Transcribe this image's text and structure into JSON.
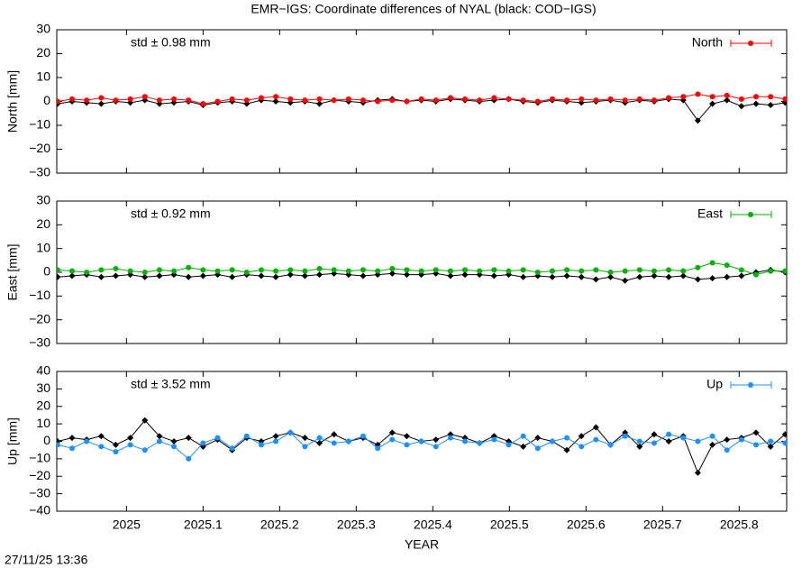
{
  "title": "EMR−IGS: Coordinate differences of NYAL (black: COD−IGS)",
  "footer": "27/11/25 13:36",
  "chart_data": [
    {
      "type": "line",
      "ylabel": "North [mm]",
      "annotation": "std ± 0.98 mm",
      "annotation_color": "#ff0000",
      "xlim": [
        2024.909,
        2025.862
      ],
      "ylim": [
        -30,
        30
      ],
      "yticks": [
        {
          "value": -30,
          "label": "−30"
        },
        {
          "value": -20,
          "label": "−20"
        },
        {
          "value": -10,
          "label": "−10"
        },
        0,
        10,
        20,
        30
      ],
      "x": [
        2024.91,
        2024.929,
        2024.948,
        2024.967,
        2024.986,
        2025.005,
        2025.024,
        2025.043,
        2025.062,
        2025.081,
        2025.1,
        2025.119,
        2025.138,
        2025.157,
        2025.176,
        2025.195,
        2025.214,
        2025.233,
        2025.252,
        2025.271,
        2025.29,
        2025.309,
        2025.328,
        2025.347,
        2025.366,
        2025.385,
        2025.404,
        2025.423,
        2025.442,
        2025.461,
        2025.48,
        2025.499,
        2025.518,
        2025.537,
        2025.556,
        2025.575,
        2025.594,
        2025.613,
        2025.632,
        2025.651,
        2025.67,
        2025.689,
        2025.708,
        2025.727,
        2025.746,
        2025.765,
        2025.784,
        2025.803,
        2025.822,
        2025.841,
        2025.86
      ],
      "series": [
        {
          "color": "#000000",
          "values": [
            -1,
            0,
            -0.5,
            -1,
            0,
            -0.5,
            0.5,
            -1,
            -0.5,
            0,
            -1.5,
            -0.5,
            0,
            -1,
            0.5,
            0,
            -0.5,
            0,
            -1,
            0.5,
            0,
            -0.5,
            0.5,
            1,
            0,
            0.5,
            0,
            1,
            0.5,
            0,
            0.5,
            1,
            0,
            -0.5,
            0.5,
            0,
            -0.5,
            0,
            0.5,
            -0.5,
            0.5,
            0,
            1,
            0.5,
            -8,
            -1,
            0.5,
            -2,
            -1,
            -1.5,
            -0.5
          ]
        },
        {
          "name": "North",
          "color": "#ff0000",
          "values": [
            0,
            1,
            0.5,
            1.5,
            0.5,
            1,
            2,
            0.5,
            1,
            0.5,
            -1,
            0,
            1,
            0.5,
            1.5,
            2,
            1,
            0.5,
            1,
            0.5,
            1,
            0.5,
            0,
            0.5,
            0,
            1,
            0.5,
            1.5,
            1,
            0.5,
            1.5,
            1,
            0.5,
            0,
            1,
            0.5,
            1,
            0.5,
            1,
            0.5,
            1,
            0.5,
            1.5,
            2,
            3,
            2,
            2.5,
            1,
            2,
            2,
            1
          ]
        }
      ]
    },
    {
      "type": "line",
      "ylabel": "East [mm]",
      "annotation": "std ± 0.92 mm",
      "annotation_color": "#00b000",
      "xlim": [
        2024.909,
        2025.862
      ],
      "ylim": [
        -30,
        30
      ],
      "yticks": [
        {
          "value": -30,
          "label": "−30"
        },
        {
          "value": -20,
          "label": "−20"
        },
        {
          "value": -10,
          "label": "−10"
        },
        0,
        10,
        20,
        30
      ],
      "x": [
        2024.91,
        2024.929,
        2024.948,
        2024.967,
        2024.986,
        2025.005,
        2025.024,
        2025.043,
        2025.062,
        2025.081,
        2025.1,
        2025.119,
        2025.138,
        2025.157,
        2025.176,
        2025.195,
        2025.214,
        2025.233,
        2025.252,
        2025.271,
        2025.29,
        2025.309,
        2025.328,
        2025.347,
        2025.366,
        2025.385,
        2025.404,
        2025.423,
        2025.442,
        2025.461,
        2025.48,
        2025.499,
        2025.518,
        2025.537,
        2025.556,
        2025.575,
        2025.594,
        2025.613,
        2025.632,
        2025.651,
        2025.67,
        2025.689,
        2025.708,
        2025.727,
        2025.746,
        2025.765,
        2025.784,
        2025.803,
        2025.822,
        2025.841,
        2025.86
      ],
      "series": [
        {
          "color": "#000000",
          "values": [
            -2,
            -1.5,
            -1,
            -2,
            -1.5,
            -1,
            -2,
            -1.5,
            -1,
            -2,
            -1.5,
            -1,
            -2,
            -1,
            -1.5,
            -2,
            -1,
            -1.5,
            -1,
            -0.5,
            -1,
            -1.5,
            -1,
            -0.5,
            -1,
            -1,
            -0.5,
            -1.5,
            -1,
            -1,
            -1.5,
            -1,
            -2,
            -1.5,
            -2,
            -1.5,
            -2,
            -3,
            -2,
            -3.5,
            -2,
            -1.5,
            -2,
            -1.5,
            -3,
            -2.5,
            -2,
            -1.5,
            0,
            1,
            0
          ]
        },
        {
          "name": "East",
          "color": "#00b000",
          "values": [
            1,
            0.5,
            0,
            1,
            1.5,
            0.5,
            0,
            1,
            0.5,
            2,
            1,
            0.5,
            1,
            0,
            1,
            0.5,
            1,
            0.5,
            1.5,
            1,
            0.5,
            1,
            0.5,
            1.5,
            1,
            0.5,
            1,
            0.5,
            1,
            0.5,
            1,
            0.5,
            1,
            0,
            0.5,
            1,
            0.5,
            1,
            0,
            0.5,
            1,
            0.5,
            1,
            0.5,
            2,
            4,
            3,
            1,
            -1,
            0.5,
            0.5
          ]
        }
      ]
    },
    {
      "type": "line",
      "ylabel": "Up [mm]",
      "xlabel": "YEAR",
      "annotation": "std ± 3.52 mm",
      "annotation_color": "#1e90ff",
      "xlim": [
        2024.909,
        2025.862
      ],
      "ylim": [
        -40,
        40
      ],
      "yticks": [
        {
          "value": -40,
          "label": "−40"
        },
        {
          "value": -30,
          "label": "−30"
        },
        {
          "value": -20,
          "label": "−20"
        },
        {
          "value": -10,
          "label": "−10"
        },
        0,
        10,
        20,
        30,
        40
      ],
      "xticks": [
        2025,
        2025.1,
        2025.2,
        2025.3,
        2025.4,
        2025.5,
        2025.6,
        2025.7,
        2025.8
      ],
      "x": [
        2024.91,
        2024.929,
        2024.948,
        2024.967,
        2024.986,
        2025.005,
        2025.024,
        2025.043,
        2025.062,
        2025.081,
        2025.1,
        2025.119,
        2025.138,
        2025.157,
        2025.176,
        2025.195,
        2025.214,
        2025.233,
        2025.252,
        2025.271,
        2025.29,
        2025.309,
        2025.328,
        2025.347,
        2025.366,
        2025.385,
        2025.404,
        2025.423,
        2025.442,
        2025.461,
        2025.48,
        2025.499,
        2025.518,
        2025.537,
        2025.556,
        2025.575,
        2025.594,
        2025.613,
        2025.632,
        2025.651,
        2025.67,
        2025.689,
        2025.708,
        2025.727,
        2025.746,
        2025.765,
        2025.784,
        2025.803,
        2025.822,
        2025.841,
        2025.86
      ],
      "series": [
        {
          "color": "#000000",
          "values": [
            0,
            2,
            1,
            3,
            -2,
            2,
            12,
            3,
            0,
            2,
            -3,
            1,
            -5,
            2,
            0,
            3,
            5,
            2,
            -1,
            4,
            0,
            2,
            -2,
            5,
            3,
            0,
            1,
            4,
            2,
            -1,
            3,
            0,
            -3,
            2,
            0,
            -5,
            3,
            8,
            -2,
            5,
            -3,
            4,
            0,
            3,
            -18,
            -2,
            1,
            2,
            5,
            -3,
            4
          ]
        },
        {
          "name": "Up",
          "color": "#1e90ff",
          "values": [
            -2,
            -4,
            0,
            -3,
            -6,
            -2,
            -5,
            0,
            -3,
            -10,
            -1,
            2,
            -4,
            3,
            -2,
            0,
            5,
            -3,
            2,
            -1,
            0,
            3,
            -4,
            1,
            -2,
            0,
            -3,
            2,
            0,
            -1,
            1,
            -2,
            3,
            -4,
            0,
            2,
            -3,
            1,
            -2,
            3,
            0,
            -1,
            4,
            2,
            0,
            3,
            -5,
            1,
            -2,
            0,
            -1
          ]
        }
      ]
    }
  ]
}
